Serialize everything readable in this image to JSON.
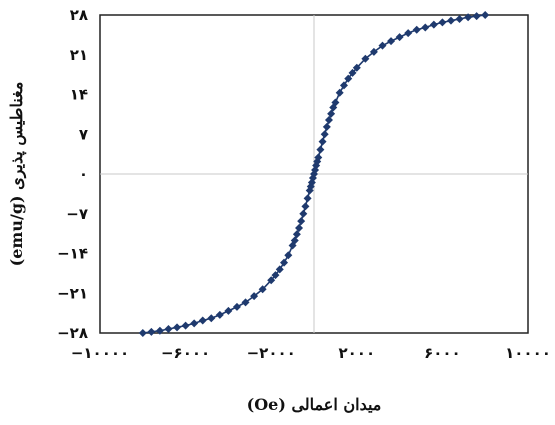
{
  "chart_data": {
    "type": "scatter",
    "title": "",
    "xlabel": "میدان اعمالی (Oe)",
    "ylabel": "مغناطیس پذیری (emu/g)",
    "xlim": [
      -10000,
      10000
    ],
    "ylim": [
      -28,
      28
    ],
    "x_ticks": [
      -10000,
      -6000,
      -2000,
      2000,
      6000,
      10000
    ],
    "x_tick_labels": [
      "−۱۰۰۰۰",
      "−۶۰۰۰",
      "−۲۰۰۰",
      "۲۰۰۰",
      "۶۰۰۰",
      "۱۰۰۰۰"
    ],
    "y_ticks": [
      28,
      21,
      14,
      7,
      0,
      -7,
      -14,
      -21,
      -28
    ],
    "y_tick_labels": [
      "۲۸",
      "۲۱",
      "۱۴",
      "۷",
      "۰",
      "−۷",
      "−۱۴",
      "−۲۱",
      "−۲۸"
    ],
    "grid": false,
    "zero_lines": true,
    "legend": "none",
    "marker": "diamond",
    "marker_color": "#1f3a6e",
    "line_color": "#1f3a6e",
    "series": [
      {
        "x": [
          -8000,
          -7600,
          -7200,
          -6800,
          -6400,
          -6000,
          -5600,
          -5200,
          -4800,
          -4400,
          -4000,
          -3600,
          -3200,
          -2800,
          -2400,
          -2000,
          -1800,
          -1600,
          -1400,
          -1200,
          -1000,
          -900,
          -800,
          -700,
          -600,
          -500,
          -400,
          -300,
          -200,
          -150,
          -100,
          -50,
          0,
          50,
          100,
          150,
          200,
          300,
          400,
          500,
          600,
          700,
          800,
          900,
          1000,
          1200,
          1400,
          1600,
          1800,
          2000,
          2400,
          2800,
          3200,
          3600,
          4000,
          4400,
          4800,
          5200,
          5600,
          6000,
          6400,
          6800,
          7200,
          7600,
          8000
        ],
        "y": [
          -28.0,
          -27.8,
          -27.6,
          -27.3,
          -27.0,
          -26.7,
          -26.3,
          -25.8,
          -25.4,
          -24.8,
          -24.1,
          -23.4,
          -22.6,
          -21.5,
          -20.3,
          -18.7,
          -17.8,
          -16.8,
          -15.6,
          -14.3,
          -12.6,
          -11.7,
          -10.6,
          -9.5,
          -8.3,
          -7.0,
          -5.7,
          -4.3,
          -2.9,
          -2.2,
          -1.5,
          -0.7,
          0.0,
          0.7,
          1.5,
          2.2,
          2.9,
          4.3,
          5.7,
          7.0,
          8.3,
          9.5,
          10.6,
          11.7,
          12.6,
          14.3,
          15.6,
          16.8,
          17.8,
          18.7,
          20.3,
          21.5,
          22.6,
          23.4,
          24.1,
          24.8,
          25.4,
          25.8,
          26.3,
          26.7,
          27.0,
          27.3,
          27.6,
          27.8,
          28.0
        ]
      }
    ]
  }
}
